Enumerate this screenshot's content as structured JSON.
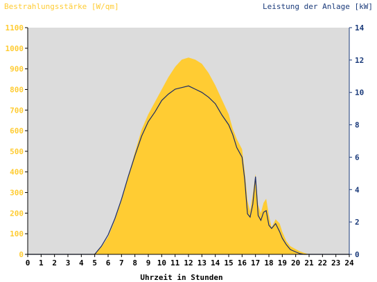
{
  "chart_data": {
    "type": "area",
    "title_left": "Bestrahlungsstärke [W/qm]",
    "title_right": "Leistung der Anlage [kW]",
    "xlabel": "Uhrzeit in Stunden",
    "xlim": [
      0,
      24
    ],
    "x_ticks": [
      "0",
      "1",
      "2",
      "3",
      "4",
      "5",
      "6",
      "7",
      "8",
      "9",
      "10",
      "11",
      "12",
      "13",
      "14",
      "15",
      "16",
      "17",
      "18",
      "19",
      "20",
      "21",
      "22",
      "23",
      "24"
    ],
    "y_left_lim": [
      0,
      1100
    ],
    "y_left_ticks": [
      "0",
      "100",
      "200",
      "300",
      "400",
      "500",
      "600",
      "700",
      "800",
      "900",
      "1000",
      "1100"
    ],
    "y_right_lim": [
      0,
      14
    ],
    "y_right_ticks": [
      "0",
      "2",
      "4",
      "6",
      "8",
      "10",
      "12",
      "14"
    ],
    "grid": false,
    "colors": {
      "plot_bg": "#dcdcdc",
      "irradiance_fill": "#ffcc33",
      "power_line": "#1a2a66",
      "left_axis_text": "#ffcc33",
      "right_axis_text": "#1a3a7a",
      "x_axis_text": "#000000"
    },
    "series": [
      {
        "axis": "left",
        "style": "filled-area",
        "x": [
          0,
          4.9,
          5.0,
          5.2,
          5.5,
          6.0,
          6.5,
          7.0,
          7.5,
          8.0,
          8.5,
          9.0,
          9.5,
          10.0,
          10.5,
          11.0,
          11.5,
          12.0,
          12.5,
          13.0,
          13.5,
          14.0,
          14.5,
          15.0,
          15.3,
          15.6,
          16.0,
          16.2,
          16.4,
          16.6,
          16.8,
          17.0,
          17.2,
          17.4,
          17.6,
          17.8,
          18.0,
          18.2,
          18.5,
          18.8,
          19.0,
          19.3,
          19.6,
          20.0,
          20.3,
          20.6,
          21.0,
          24
        ],
        "values": [
          0,
          0,
          5,
          15,
          35,
          85,
          165,
          260,
          375,
          495,
          605,
          680,
          740,
          800,
          860,
          910,
          945,
          955,
          945,
          925,
          880,
          820,
          750,
          680,
          610,
          560,
          510,
          400,
          260,
          210,
          290,
          390,
          240,
          200,
          250,
          270,
          190,
          130,
          170,
          150,
          110,
          65,
          40,
          25,
          15,
          8,
          0,
          0
        ]
      },
      {
        "axis": "right",
        "style": "line",
        "x": [
          0,
          5.0,
          5.2,
          5.5,
          6.0,
          6.5,
          7.0,
          7.5,
          8.0,
          8.5,
          9.0,
          9.5,
          10.0,
          10.5,
          11.0,
          11.5,
          12.0,
          12.5,
          13.0,
          13.5,
          14.0,
          14.5,
          15.0,
          15.3,
          15.6,
          16.0,
          16.2,
          16.4,
          16.6,
          16.8,
          17.0,
          17.2,
          17.4,
          17.6,
          17.8,
          18.0,
          18.2,
          18.5,
          18.8,
          19.0,
          19.3,
          19.6,
          20.0,
          20.3,
          20.6,
          21.0,
          24
        ],
        "values": [
          0,
          0,
          0.2,
          0.5,
          1.2,
          2.2,
          3.4,
          4.8,
          6.1,
          7.3,
          8.2,
          8.8,
          9.5,
          9.9,
          10.2,
          10.3,
          10.4,
          10.2,
          10.0,
          9.7,
          9.3,
          8.6,
          8.0,
          7.4,
          6.6,
          6.0,
          4.6,
          2.5,
          2.3,
          3.1,
          4.8,
          2.4,
          2.1,
          2.6,
          2.7,
          1.8,
          1.6,
          1.9,
          1.4,
          1.0,
          0.6,
          0.3,
          0.15,
          0.05,
          0,
          0,
          0
        ]
      }
    ]
  }
}
